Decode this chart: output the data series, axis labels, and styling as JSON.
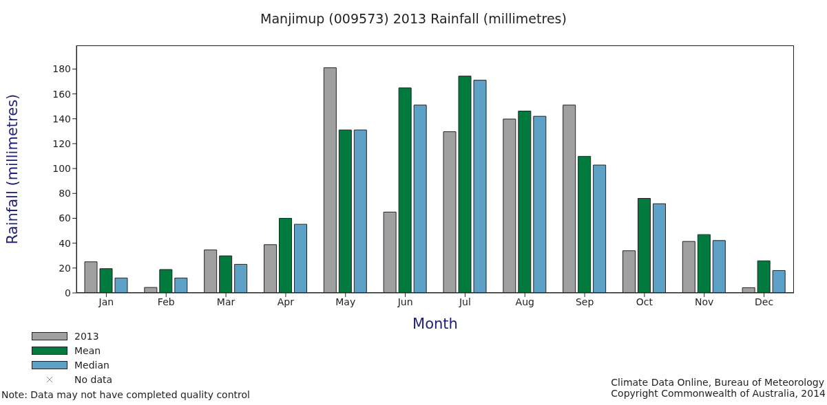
{
  "chart_data": {
    "type": "bar",
    "title": "Manjimup (009573) 2013 Rainfall (millimetres)",
    "xlabel": "Month",
    "ylabel": "Rainfall (millimetres)",
    "categories": [
      "Jan",
      "Feb",
      "Mar",
      "Apr",
      "May",
      "Jun",
      "Jul",
      "Aug",
      "Sep",
      "Oct",
      "Nov",
      "Dec"
    ],
    "series": [
      {
        "name": "2013",
        "color": "#a0a0a0",
        "values": [
          25,
          4.4,
          34.6,
          38.8,
          181,
          65,
          129.6,
          139.8,
          151,
          33.9,
          41.4,
          4.2
        ]
      },
      {
        "name": "Mean",
        "color": "#007a3d",
        "values": [
          19.5,
          18.8,
          29.8,
          60,
          131,
          164.8,
          174.3,
          146.2,
          109.8,
          76,
          46.9,
          25.8
        ]
      },
      {
        "name": "Median",
        "color": "#5ea1c6",
        "values": [
          12,
          12,
          23,
          55.2,
          131,
          151,
          171,
          142,
          102.8,
          71.7,
          42.1,
          18
        ]
      },
      {
        "name": "No data",
        "type": "scatter",
        "marker": "cross",
        "color": "#a0a0a0",
        "values": [
          null,
          null,
          null,
          null,
          null,
          null,
          null,
          null,
          null,
          null,
          null,
          null
        ]
      }
    ],
    "ylim": [
      0,
      199
    ],
    "yticks": [
      0,
      20,
      40,
      60,
      80,
      100,
      120,
      140,
      160,
      180
    ],
    "grid": false,
    "legend": "bottom left",
    "annotations": [
      "Note: Data may not have completed quality control",
      "Climate Data Online, Bureau of Meteorology",
      "Copyright Commonwealth of Australia, 2014"
    ]
  }
}
